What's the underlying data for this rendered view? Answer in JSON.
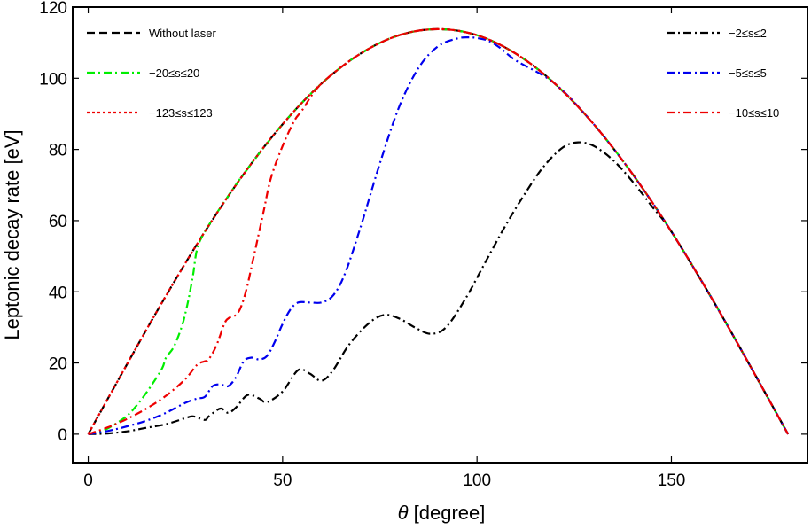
{
  "chart_data": {
    "type": "line",
    "xlabel_symbol": "θ",
    "xlabel_unit": " [degree]",
    "ylabel": "Leptonic decay rate [eV]",
    "xlim": [
      -4,
      185
    ],
    "ylim": [
      -8,
      120
    ],
    "xticks": [
      0,
      50,
      100,
      150
    ],
    "xtick_labels": [
      "0",
      "50",
      "100",
      "150"
    ],
    "yticks": [
      0,
      20,
      40,
      60,
      80,
      100,
      120
    ],
    "ytick_labels": [
      "0",
      "20",
      "40",
      "60",
      "80",
      "100",
      "120"
    ],
    "grid": false,
    "legend": [
      {
        "label": "Without laser",
        "color": "#000000",
        "dash": "dashed",
        "position": "top-left"
      },
      {
        "label": "−20≤s≤20",
        "color": "#00ee00",
        "dash": "dashdot",
        "position": "top-left"
      },
      {
        "label": "−123≤s≤123",
        "color": "#ee0000",
        "dash": "dotted",
        "position": "top-left"
      },
      {
        "label": "−2≤s≤2",
        "color": "#000000",
        "dash": "dashdot",
        "position": "top-right"
      },
      {
        "label": "−5≤s≤5",
        "color": "#0000ee",
        "dash": "dashdot",
        "position": "top-right"
      },
      {
        "label": "−10≤s≤10",
        "color": "#ee0000",
        "dash": "dashdot",
        "position": "top-right"
      }
    ],
    "series": [
      {
        "name": "Without laser",
        "color": "#000000",
        "dash": "dashed",
        "x": [
          0,
          10,
          20,
          30,
          40,
          50,
          60,
          70,
          80,
          90,
          100,
          110,
          120,
          130,
          140,
          150,
          160,
          170,
          180
        ],
        "y": [
          0,
          19.7,
          38.9,
          56.9,
          73.1,
          87.1,
          98.5,
          106.9,
          112.1,
          113.8,
          112.1,
          106.9,
          98.5,
          87.1,
          73.1,
          56.9,
          38.9,
          19.7,
          0
        ]
      },
      {
        "name": "−20≤s≤20",
        "color": "#00ee00",
        "dash": "dashdot",
        "x": [
          0,
          3,
          6,
          10,
          13,
          16,
          19,
          20,
          22,
          24,
          25,
          26,
          27,
          28,
          30,
          35,
          40,
          50,
          60,
          70,
          80,
          90,
          100,
          110,
          120,
          130,
          140,
          150,
          160,
          170,
          180
        ],
        "y": [
          0,
          0.6,
          2.2,
          5.2,
          8.8,
          13.3,
          18.5,
          21.5,
          24.5,
          30,
          34,
          39,
          45,
          52,
          56.9,
          65.3,
          73.1,
          87.1,
          98.5,
          106.9,
          112.1,
          113.8,
          112.1,
          106.9,
          98.5,
          87.1,
          73.1,
          56.9,
          38.9,
          19.7,
          0
        ]
      },
      {
        "name": "−123≤s≤123",
        "color": "#ee0000",
        "dash": "dotted",
        "x": [
          0,
          10,
          20,
          30,
          40,
          50,
          60,
          70,
          80,
          90,
          100,
          110,
          120,
          130,
          140,
          150,
          160,
          170,
          180
        ],
        "y": [
          0,
          19.7,
          38.9,
          56.9,
          73.1,
          87.1,
          98.5,
          106.9,
          112.1,
          113.8,
          112.1,
          106.9,
          98.5,
          87.1,
          73.1,
          56.9,
          38.9,
          19.7,
          0
        ]
      },
      {
        "name": "−2≤s≤2",
        "color": "#000000",
        "dash": "dashdot",
        "x": [
          0,
          5,
          10,
          15,
          20,
          25,
          27,
          30,
          31,
          34,
          36,
          38,
          41,
          44,
          46,
          50,
          54,
          57,
          60,
          63,
          67,
          72,
          76,
          80,
          84,
          88,
          92,
          97,
          102,
          107,
          112,
          117,
          122,
          126,
          130,
          135,
          140,
          145,
          150,
          160,
          170,
          180
        ],
        "y": [
          0,
          0.2,
          0.8,
          1.8,
          2.8,
          4.5,
          5.0,
          4.0,
          5.0,
          7.2,
          6.0,
          7.5,
          11.0,
          10.0,
          9.0,
          12.0,
          18.0,
          17.0,
          15.0,
          18.0,
          25.0,
          31.0,
          33.5,
          32.5,
          30.0,
          28.2,
          30.0,
          38.0,
          48.0,
          58.0,
          67.0,
          75.0,
          80.5,
          82.0,
          81.0,
          77.0,
          71.0,
          64.0,
          56.9,
          38.9,
          19.7,
          0
        ]
      },
      {
        "name": "−5≤s≤5",
        "color": "#0000ee",
        "dash": "dashdot",
        "x": [
          0,
          5,
          10,
          15,
          20,
          25,
          28,
          30,
          32,
          34,
          36,
          38,
          40,
          42,
          44,
          46,
          48,
          50,
          52,
          54,
          57,
          60,
          63,
          66,
          70,
          75,
          80,
          85,
          90,
          95,
          98,
          100,
          103,
          106,
          110,
          120,
          130,
          140,
          150,
          160,
          170,
          180
        ],
        "y": [
          0,
          0.9,
          2.2,
          3.8,
          6.0,
          8.8,
          10.0,
          10.5,
          13.5,
          14.0,
          13.5,
          16.0,
          20.5,
          21.5,
          21.0,
          22.0,
          26.0,
          31.0,
          35.0,
          37.0,
          37.0,
          37.0,
          39.0,
          45.0,
          58.0,
          76.0,
          92.0,
          103.0,
          109.0,
          111.2,
          111.5,
          111.3,
          110.5,
          108.5,
          105.0,
          98.5,
          87.1,
          73.1,
          56.9,
          38.9,
          19.7,
          0
        ]
      },
      {
        "name": "−10≤s≤10",
        "color": "#ee0000",
        "dash": "dashdot",
        "x": [
          0,
          5,
          10,
          15,
          20,
          25,
          28,
          30,
          31,
          33,
          35,
          36,
          37,
          38,
          39,
          40,
          41,
          42,
          43,
          45,
          47,
          50,
          53,
          55,
          60,
          70,
          80,
          90,
          100,
          110,
          120,
          130,
          140,
          150,
          160,
          170,
          180
        ],
        "y": [
          0,
          1.9,
          4.3,
          7.2,
          10.8,
          15.5,
          19.5,
          20.5,
          21.0,
          25.0,
          31.0,
          32.5,
          33.0,
          33.5,
          35.0,
          38.0,
          42.0,
          47.0,
          52.0,
          62.0,
          72.0,
          81.0,
          88.0,
          91.0,
          98.5,
          106.9,
          112.1,
          113.8,
          112.1,
          106.9,
          98.5,
          87.1,
          73.1,
          56.9,
          38.9,
          19.7,
          0
        ]
      }
    ]
  }
}
